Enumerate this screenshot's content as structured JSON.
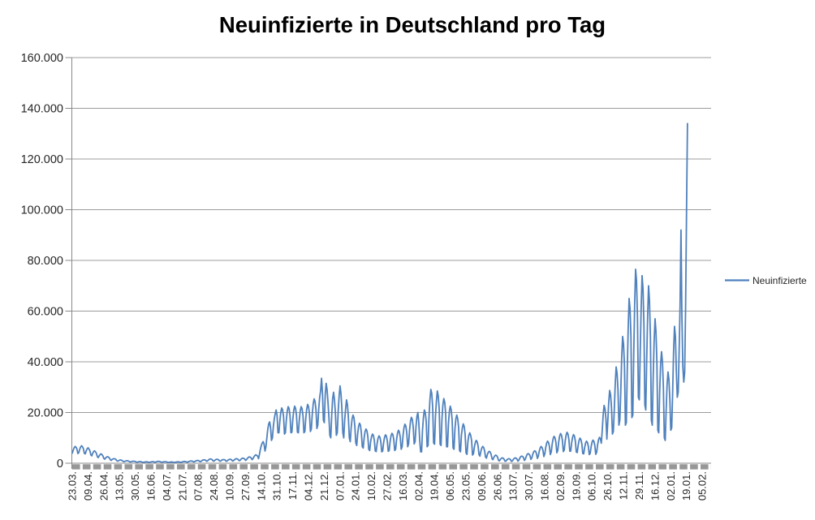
{
  "title": "Neuinfizierte in Deutschland pro Tag",
  "legend": {
    "label": "Neuinfizierte"
  },
  "colors": {
    "series": "#4F81BD",
    "gridline": "#9C9C9C",
    "axis": "#898989",
    "dash_band": "#979797",
    "text": "#262626",
    "title": "#000000"
  },
  "chart_data": {
    "type": "line",
    "title": "Neuinfizierte in Deutschland pro Tag",
    "grid": true,
    "legend_position": "right",
    "ylim": [
      0,
      160000
    ],
    "y_tick_step": 20000,
    "y_ticks": [
      0,
      20000,
      40000,
      60000,
      80000,
      100000,
      120000,
      140000,
      160000
    ],
    "y_tick_labels": [
      "0",
      "20.000",
      "40.000",
      "60.000",
      "80.000",
      "100.000",
      "120.000",
      "140.000",
      "160.000"
    ],
    "x_tick_interval": 17,
    "x_total_categories": 690,
    "x_tick_labels": [
      "23.03.",
      "09.04.",
      "26.04.",
      "13.05.",
      "30.05.",
      "16.06.",
      "04.07.",
      "21.07.",
      "07.08.",
      "24.08.",
      "10.09.",
      "27.09.",
      "14.10.",
      "31.10.",
      "17.11.",
      "04.12.",
      "21.12.",
      "07.01.",
      "24.01.",
      "10.02.",
      "27.02.",
      "16.03.",
      "02.04.",
      "19.04.",
      "06.05.",
      "23.05.",
      "09.06.",
      "26.06.",
      "13.07.",
      "30.07.",
      "16.08.",
      "02.09.",
      "19.09.",
      "06.10.",
      "26.10.",
      "12.11.",
      "29.11.",
      "16.12.",
      "02.01.",
      "19.01.",
      "05.02."
    ],
    "series": [
      {
        "name": "Neuinfizierte",
        "color": "#4F81BD",
        "values": [
          4000,
          5200,
          6100,
          6600,
          6300,
          5600,
          3800,
          4200,
          5500,
          6400,
          6900,
          6500,
          5700,
          3900,
          3700,
          4900,
          5700,
          6100,
          5600,
          4900,
          3300,
          2900,
          3900,
          4600,
          4900,
          4500,
          3900,
          2600,
          2200,
          2900,
          3400,
          3700,
          3400,
          2900,
          1900,
          1600,
          2100,
          2400,
          2600,
          2400,
          2100,
          1400,
          1100,
          1500,
          1700,
          1800,
          1700,
          1500,
          1000,
          800,
          1000,
          1200,
          1300,
          1200,
          1000,
          700,
          600,
          800,
          900,
          1000,
          900,
          800,
          550,
          500,
          650,
          750,
          800,
          750,
          650,
          450,
          400,
          500,
          600,
          650,
          600,
          500,
          350,
          350,
          450,
          500,
          550,
          500,
          450,
          300,
          400,
          500,
          600,
          600,
          550,
          350,
          450,
          600,
          700,
          750,
          700,
          600,
          400,
          400,
          500,
          550,
          600,
          550,
          500,
          300,
          300,
          400,
          450,
          500,
          450,
          400,
          250,
          350,
          450,
          500,
          550,
          500,
          450,
          300,
          400,
          550,
          650,
          700,
          650,
          550,
          400,
          500,
          700,
          800,
          900,
          850,
          750,
          500,
          600,
          850,
          1000,
          1100,
          1050,
          900,
          600,
          750,
          1050,
          1250,
          1350,
          1300,
          1150,
          750,
          900,
          1300,
          1550,
          1700,
          1600,
          1400,
          900,
          850,
          1200,
          1450,
          1550,
          1500,
          1300,
          850,
          800,
          1150,
          1350,
          1450,
          1400,
          1250,
          800,
          850,
          1200,
          1450,
          1550,
          1500,
          1300,
          850,
          1000,
          1400,
          1650,
          1800,
          1700,
          1500,
          1000,
          1100,
          1550,
          1850,
          2000,
          1900,
          1700,
          1100,
          1400,
          1900,
          2300,
          2500,
          2400,
          2100,
          1400,
          1800,
          2500,
          3000,
          3300,
          3100,
          2800,
          1800,
          3500,
          5500,
          7000,
          8000,
          8500,
          7500,
          4800,
          6500,
          10000,
          13500,
          15500,
          16300,
          14000,
          9000,
          10000,
          14500,
          17500,
          19500,
          21000,
          19000,
          12000,
          12000,
          16500,
          20000,
          21800,
          21000,
          18500,
          11500,
          12000,
          17000,
          20500,
          22300,
          21500,
          18700,
          12000,
          12200,
          17300,
          20800,
          22500,
          21600,
          18800,
          12200,
          12000,
          17000,
          20500,
          22300,
          21500,
          18700,
          12000,
          12500,
          17700,
          21300,
          23200,
          22300,
          19400,
          12500,
          13500,
          19300,
          23300,
          25400,
          24400,
          21200,
          13700,
          15000,
          21500,
          26000,
          28500,
          33500,
          28000,
          17000,
          16000,
          27000,
          31500,
          29000,
          24000,
          18000,
          11000,
          10000,
          19000,
          25500,
          28000,
          25000,
          19500,
          11000,
          12000,
          20500,
          26500,
          30500,
          27500,
          21500,
          12000,
          10000,
          17000,
          21500,
          25000,
          23000,
          18000,
          10000,
          8500,
          14000,
          17500,
          19000,
          18000,
          14500,
          8000,
          7000,
          11500,
          14500,
          15800,
          15000,
          12000,
          6500,
          6000,
          10000,
          12500,
          13500,
          12800,
          10500,
          5500,
          5000,
          8500,
          10500,
          11500,
          11000,
          9000,
          4800,
          4600,
          7800,
          9800,
          10800,
          10300,
          8500,
          4500,
          4800,
          8000,
          10200,
          11200,
          10700,
          8800,
          4700,
          5000,
          8500,
          10800,
          11800,
          11300,
          9300,
          5000,
          5500,
          9300,
          11800,
          13000,
          12400,
          10200,
          5500,
          6500,
          11000,
          14000,
          15400,
          14700,
          12100,
          6500,
          7700,
          13000,
          16500,
          18100,
          17300,
          14200,
          7600,
          8500,
          14500,
          18500,
          20000,
          16000,
          9000,
          4500,
          4500,
          13000,
          18000,
          21000,
          20000,
          16500,
          6500,
          7000,
          18000,
          25000,
          29100,
          27500,
          22000,
          8000,
          7500,
          18500,
          24500,
          28500,
          26500,
          21500,
          7500,
          7000,
          17500,
          23000,
          25500,
          24000,
          19500,
          6500,
          6500,
          15500,
          20500,
          22500,
          21000,
          17000,
          6000,
          5500,
          13500,
          17500,
          19000,
          17500,
          14000,
          5000,
          4500,
          11000,
          14000,
          15500,
          14500,
          11500,
          4000,
          3500,
          8500,
          11000,
          12000,
          11000,
          9000,
          3200,
          3800,
          6400,
          8200,
          9000,
          8400,
          6800,
          3400,
          2800,
          4700,
          6000,
          6600,
          6200,
          5000,
          2500,
          2000,
          3400,
          4300,
          4700,
          4400,
          3600,
          1800,
          1400,
          2300,
          2900,
          3200,
          3000,
          2400,
          1200,
          900,
          1500,
          1900,
          2100,
          2000,
          1600,
          800,
          800,
          1300,
          1600,
          1800,
          1700,
          1400,
          700,
          900,
          1500,
          1900,
          2100,
          2000,
          1600,
          800,
          1200,
          2000,
          2600,
          2800,
          2700,
          2200,
          1100,
          1600,
          2700,
          3500,
          3800,
          3600,
          3000,
          1500,
          2100,
          3500,
          4500,
          4900,
          4700,
          3800,
          1900,
          2800,
          4700,
          6000,
          6600,
          6200,
          5100,
          2600,
          3700,
          6200,
          7900,
          8700,
          8200,
          6700,
          3400,
          4500,
          7600,
          9700,
          10600,
          10000,
          8200,
          4100,
          5000,
          8400,
          10700,
          11700,
          11100,
          9100,
          4600,
          5200,
          8700,
          11100,
          12200,
          11500,
          9400,
          4700,
          4800,
          8100,
          10300,
          11300,
          10700,
          8700,
          4400,
          4200,
          7000,
          9000,
          9900,
          9300,
          7600,
          3800,
          3700,
          6200,
          7900,
          8700,
          8200,
          6700,
          3400,
          3900,
          6500,
          8300,
          9100,
          8600,
          7000,
          3500,
          4300,
          7300,
          9300,
          10200,
          9600,
          7900,
          13000,
          19000,
          22800,
          21500,
          17500,
          9500,
          16500,
          24000,
          28700,
          27000,
          22000,
          11500,
          12500,
          21000,
          31000,
          38000,
          35500,
          29000,
          15000,
          17000,
          28000,
          41500,
          50000,
          47000,
          38500,
          15000,
          16000,
          36500,
          53000,
          65000,
          61000,
          50000,
          18000,
          19000,
          43000,
          62500,
          76500,
          72000,
          58000,
          26000,
          25000,
          44000,
          61000,
          74000,
          69000,
          55000,
          23000,
          21000,
          41000,
          58000,
          70000,
          64000,
          50000,
          17000,
          15000,
          34000,
          48000,
          57000,
          52000,
          40000,
          13000,
          12000,
          28000,
          39000,
          44000,
          40000,
          30000,
          10000,
          9000,
          21000,
          31000,
          36000,
          33000,
          25000,
          13000,
          14000,
          28000,
          44000,
          54000,
          50000,
          36000,
          26000,
          28000,
          44000,
          62000,
          92000,
          58000,
          38000,
          32000,
          36000,
          62000,
          100000,
          134000
        ]
      }
    ]
  }
}
